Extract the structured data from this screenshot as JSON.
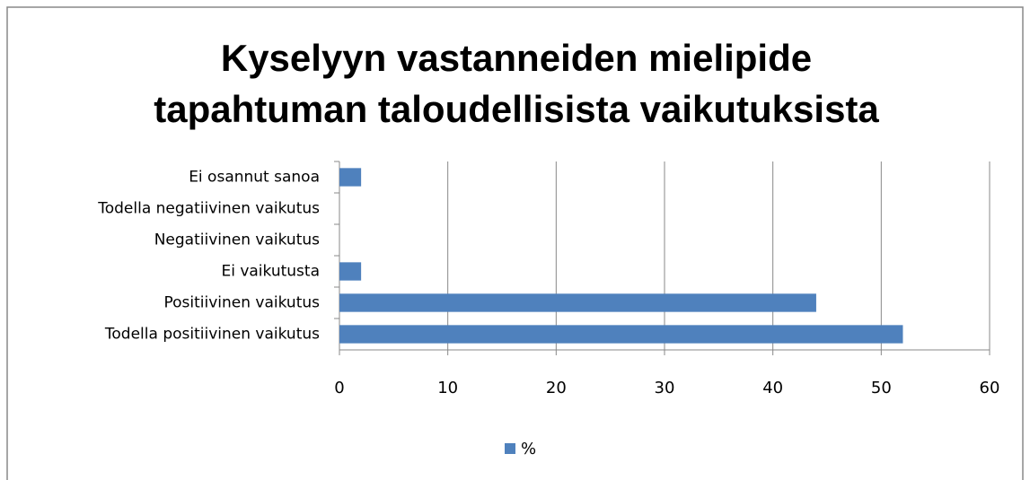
{
  "chart_data": {
    "type": "bar",
    "orientation": "horizontal",
    "title": [
      "Kyselyyn vastanneiden mielipide",
      "tapahtuman taloudellisista vaikutuksista"
    ],
    "categories": [
      "Ei osannut sanoa",
      "Todella negatiivinen vaikutus",
      "Negatiivinen vaikutus",
      "Ei vaikutusta",
      "Positiivinen vaikutus",
      "Todella positiivinen vaikutus"
    ],
    "series": [
      {
        "name": "%",
        "color": "#4f81bd",
        "values": [
          2,
          0,
          0,
          2,
          44,
          52
        ]
      }
    ],
    "xlim": [
      0,
      60
    ],
    "xticks": [
      0,
      10,
      20,
      30,
      40,
      50,
      60
    ],
    "grid": true,
    "legend": "bottom"
  }
}
